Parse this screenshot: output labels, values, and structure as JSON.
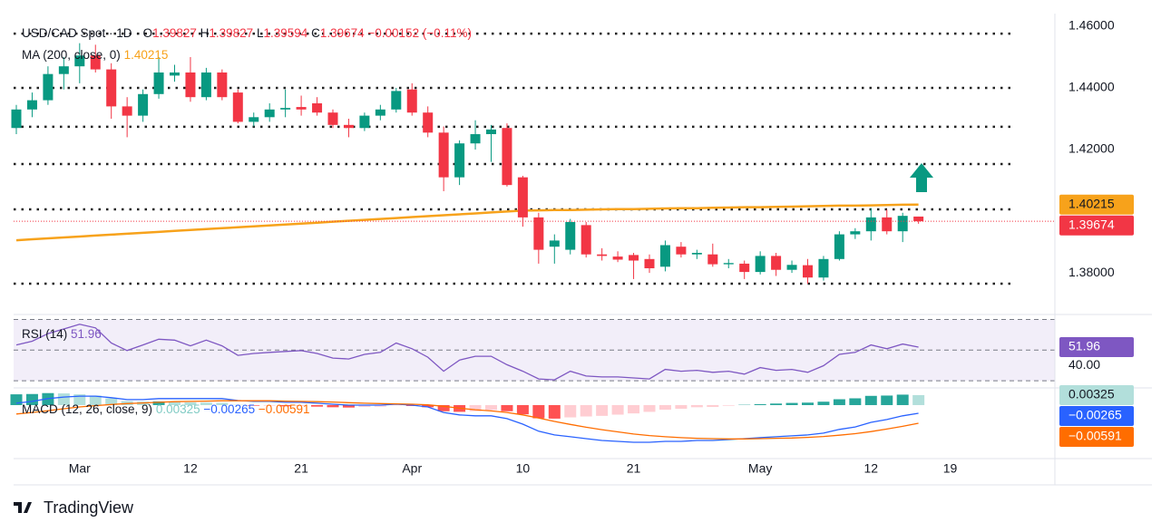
{
  "chart_data": [
    {
      "type": "candlestick",
      "title": "USD/CAD Spot · 1D ·",
      "ohlc_labels": [
        "O",
        "H",
        "L",
        "C"
      ],
      "change_label": "−0.00152 (−0.11%)",
      "categories": [
        null,
        null,
        null,
        null,
        "Mar",
        null,
        null,
        null,
        null,
        null,
        null,
        "12",
        null,
        null,
        null,
        null,
        null,
        null,
        "21",
        null,
        null,
        null,
        null,
        null,
        null,
        "Apr",
        null,
        null,
        null,
        null,
        null,
        null,
        "10",
        null,
        null,
        null,
        null,
        null,
        null,
        "21",
        null,
        null,
        null,
        null,
        null,
        null,
        null,
        "May",
        null,
        null,
        null,
        null,
        null,
        null,
        "12",
        null,
        null,
        null,
        null,
        "19"
      ],
      "open": [
        1.427,
        1.433,
        1.436,
        1.4445,
        1.447,
        1.4505,
        1.446,
        1.434,
        1.431,
        1.438,
        1.444,
        1.445,
        1.437,
        1.445,
        1.4385,
        1.429,
        1.4305,
        1.433,
        1.4338,
        1.435,
        1.432,
        1.428,
        1.427,
        1.431,
        1.433,
        1.4395,
        1.432,
        1.4255,
        1.411,
        1.422,
        1.425,
        1.427,
        1.411,
        1.398,
        1.3885,
        1.3875,
        1.3955,
        1.386,
        1.3853,
        1.3858,
        1.3845,
        1.382,
        1.3885,
        1.386,
        1.386,
        1.3828,
        1.383,
        1.3803,
        1.3855,
        1.381,
        1.3825,
        1.3785,
        1.3845,
        1.3925,
        1.3935,
        1.398,
        1.3935,
        1.39827,
        null,
        null
      ],
      "high": [
        1.4345,
        1.4385,
        1.447,
        1.45,
        1.4545,
        1.454,
        1.448,
        1.437,
        1.4395,
        1.45,
        1.4475,
        1.45,
        1.4465,
        1.446,
        1.4395,
        1.432,
        1.435,
        1.4395,
        1.4375,
        1.437,
        1.433,
        1.43,
        1.432,
        1.4345,
        1.44,
        1.4415,
        1.434,
        1.4275,
        1.423,
        1.4295,
        1.428,
        1.4285,
        1.4115,
        1.3995,
        1.3925,
        1.3975,
        1.3965,
        1.388,
        1.387,
        1.3865,
        1.386,
        1.3905,
        1.39,
        1.3875,
        1.3895,
        1.3845,
        1.384,
        1.387,
        1.3865,
        1.384,
        1.3845,
        1.3855,
        1.3935,
        1.3945,
        1.401,
        1.4005,
        1.3995,
        1.39827,
        null,
        null
      ],
      "low": [
        1.425,
        1.4305,
        1.4345,
        1.4395,
        1.4415,
        1.445,
        1.43,
        1.424,
        1.429,
        1.4365,
        1.442,
        1.4355,
        1.436,
        1.436,
        1.4285,
        1.4275,
        1.429,
        1.4305,
        1.431,
        1.431,
        1.427,
        1.424,
        1.426,
        1.4295,
        1.432,
        1.431,
        1.424,
        1.4065,
        1.4085,
        1.42,
        1.416,
        1.408,
        1.395,
        1.383,
        1.383,
        1.386,
        1.385,
        1.384,
        1.3835,
        1.378,
        1.38,
        1.3805,
        1.385,
        1.3845,
        1.382,
        1.3815,
        1.378,
        1.3795,
        1.379,
        1.38,
        1.3765,
        1.3775,
        1.384,
        1.391,
        1.3905,
        1.3925,
        1.39,
        1.39594,
        null,
        null
      ],
      "close": [
        1.433,
        1.436,
        1.4445,
        1.447,
        1.4505,
        1.446,
        1.434,
        1.431,
        1.438,
        1.445,
        1.445,
        1.437,
        1.445,
        1.437,
        1.429,
        1.4305,
        1.433,
        1.4335,
        1.433,
        1.432,
        1.428,
        1.427,
        1.431,
        1.433,
        1.439,
        1.432,
        1.4255,
        1.411,
        1.422,
        1.425,
        1.4265,
        1.4085,
        1.398,
        1.3875,
        1.3905,
        1.3965,
        1.386,
        1.3855,
        1.3843,
        1.384,
        1.3815,
        1.389,
        1.386,
        1.3865,
        1.3828,
        1.3832,
        1.3803,
        1.3855,
        1.381,
        1.3826,
        1.3785,
        1.3845,
        1.3925,
        1.3935,
        1.398,
        1.3935,
        1.3985,
        1.39674,
        null,
        null
      ],
      "color_up": "#089981",
      "color_down": "#f23645",
      "series": [
        {
          "name": "MA (200, close, 0)",
          "color": "#f7a21b",
          "values": [
            1.3906,
            1.3909,
            1.3912,
            1.3915,
            1.3918,
            1.3921,
            1.3924,
            1.3927,
            1.393,
            1.3933,
            1.3936,
            1.3939,
            1.3942,
            1.3945,
            1.3948,
            1.3951,
            1.3954,
            1.3957,
            1.396,
            1.3963,
            1.3966,
            1.3969,
            1.3972,
            1.3975,
            1.3978,
            1.3981,
            1.3984,
            1.3987,
            1.399,
            1.3993,
            1.3996,
            1.3999,
            1.4002,
            1.4003,
            1.4004,
            1.4004,
            1.4005,
            1.4006,
            1.4007,
            1.4007,
            1.4008,
            1.4009,
            1.401,
            1.401,
            1.4011,
            1.4012,
            1.4013,
            1.4013,
            1.4014,
            1.4015,
            1.4016,
            1.4017,
            1.4018,
            1.4018,
            1.4019,
            1.402,
            1.4021,
            1.40215,
            null,
            null
          ]
        }
      ],
      "levels": [
        1.4576,
        1.44,
        1.4274,
        1.4153,
        1.4006,
        1.3765
      ],
      "ylim": [
        1.3671,
        1.4641
      ],
      "yticks": [
        {
          "value": 1.46,
          "label": "1.46000"
        },
        {
          "value": 1.44,
          "label": "1.44000"
        },
        {
          "value": 1.42,
          "label": "1.42000"
        },
        {
          "value": 1.38,
          "label": "1.38000"
        }
      ]
    },
    {
      "type": "line",
      "series": [
        {
          "name": "RSI (14)",
          "color": "#7e57c2",
          "values": [
            53.4,
            55.8,
            60.8,
            63.8,
            66.9,
            64.5,
            54.6,
            49.7,
            53.4,
            57.1,
            56.5,
            52.8,
            56.5,
            52.8,
            46.6,
            47.8,
            48.5,
            49.1,
            49.7,
            47.8,
            44.8,
            44.2,
            47.2,
            48.5,
            54.6,
            50.9,
            45.4,
            36.2,
            43.5,
            46.0,
            46.0,
            40.5,
            36.2,
            31.2,
            30.6,
            36.2,
            33.1,
            32.5,
            32.5,
            31.8,
            31.2,
            37.4,
            36.2,
            36.8,
            35.5,
            36.2,
            34.3,
            38.6,
            36.8,
            37.4,
            35.5,
            39.8,
            47.2,
            48.5,
            53.4,
            50.9,
            54.0,
            51.96,
            null,
            null
          ]
        }
      ],
      "levels": [
        70,
        50,
        30
      ],
      "ylim": [
        26.5,
        71.5
      ],
      "yticks": [
        {
          "value": 40,
          "label": "40.00"
        }
      ]
    },
    {
      "type": "macd",
      "title": "MACD (12, 26, close, 9)",
      "colors": [
        "#26a69a",
        "#b2dfdb",
        "#ffcdd2",
        "#ff5252"
      ],
      "series": [
        {
          "color": "#b2dfdb",
          "values": [
            0.0035,
            0.0036,
            0.0039,
            0.0038,
            0.0035,
            0.0031,
            0.0022,
            0.0013,
            0.0011,
            0.0012,
            0.001,
            0.0009,
            0.0008,
            0.0007,
            0.0001,
            -0.0002,
            -0.0002,
            -0.0004,
            -0.0003,
            -0.0005,
            -0.0007,
            -0.0008,
            -0.0006,
            -0.0005,
            -0.0001,
            -0.0003,
            -0.0007,
            -0.002,
            -0.0022,
            -0.002,
            -0.0016,
            -0.002,
            -0.003,
            -0.0043,
            -0.0044,
            -0.004,
            -0.0037,
            -0.0035,
            -0.0031,
            -0.0027,
            -0.0022,
            -0.0015,
            -0.0012,
            -0.0007,
            -0.0006,
            -0.0002,
            0.0001,
            0.0003,
            0.0005,
            0.0007,
            0.0008,
            0.0011,
            0.0019,
            0.0022,
            0.003,
            0.0031,
            0.0034,
            0.00325,
            null,
            null
          ]
        },
        {
          "color": "#2962ff",
          "last_label": "−0.00265",
          "values": [
            0.0006,
            0.0012,
            0.0021,
            0.0026,
            0.0029,
            0.0029,
            0.0024,
            0.0018,
            0.0018,
            0.0021,
            0.0021,
            0.0021,
            0.0021,
            0.0021,
            0.0015,
            0.0012,
            0.0012,
            0.0009,
            0.0009,
            0.0006,
            0.0003,
            0.0,
            0.0,
            0.0,
            0.0003,
            0.0,
            -0.0006,
            -0.0024,
            -0.0032,
            -0.0035,
            -0.0035,
            -0.0044,
            -0.0062,
            -0.0085,
            -0.0097,
            -0.0103,
            -0.0109,
            -0.0115,
            -0.0118,
            -0.0121,
            -0.0121,
            -0.0118,
            -0.0118,
            -0.0115,
            -0.0115,
            -0.0112,
            -0.0109,
            -0.0106,
            -0.0103,
            -0.01,
            -0.0097,
            -0.0091,
            -0.0079,
            -0.0071,
            -0.0056,
            -0.0047,
            -0.0035,
            -0.00265,
            null,
            null
          ]
        },
        {
          "color": "#ff6d00",
          "last_label": "−0.00591",
          "values": [
            -0.0029,
            -0.0024,
            -0.0018,
            -0.0012,
            -0.0006,
            -0.0002,
            0.0002,
            0.0005,
            0.0007,
            0.0009,
            0.0011,
            0.0012,
            0.0013,
            0.0014,
            0.0014,
            0.0014,
            0.0014,
            0.0013,
            0.0012,
            0.0011,
            0.001,
            0.0008,
            0.0006,
            0.0005,
            0.0004,
            0.0003,
            0.0001,
            -0.0004,
            -0.001,
            -0.0015,
            -0.0019,
            -0.0024,
            -0.0032,
            -0.0042,
            -0.0053,
            -0.0063,
            -0.0072,
            -0.008,
            -0.0087,
            -0.0094,
            -0.0099,
            -0.0103,
            -0.0106,
            -0.0108,
            -0.0109,
            -0.011,
            -0.011,
            -0.0109,
            -0.0108,
            -0.0107,
            -0.0105,
            -0.0102,
            -0.0098,
            -0.0093,
            -0.0086,
            -0.0078,
            -0.0069,
            -0.00591,
            null,
            null
          ]
        }
      ],
      "ylim": [
        -0.0171,
        0.005
      ]
    }
  ],
  "brand": "TradingView"
}
